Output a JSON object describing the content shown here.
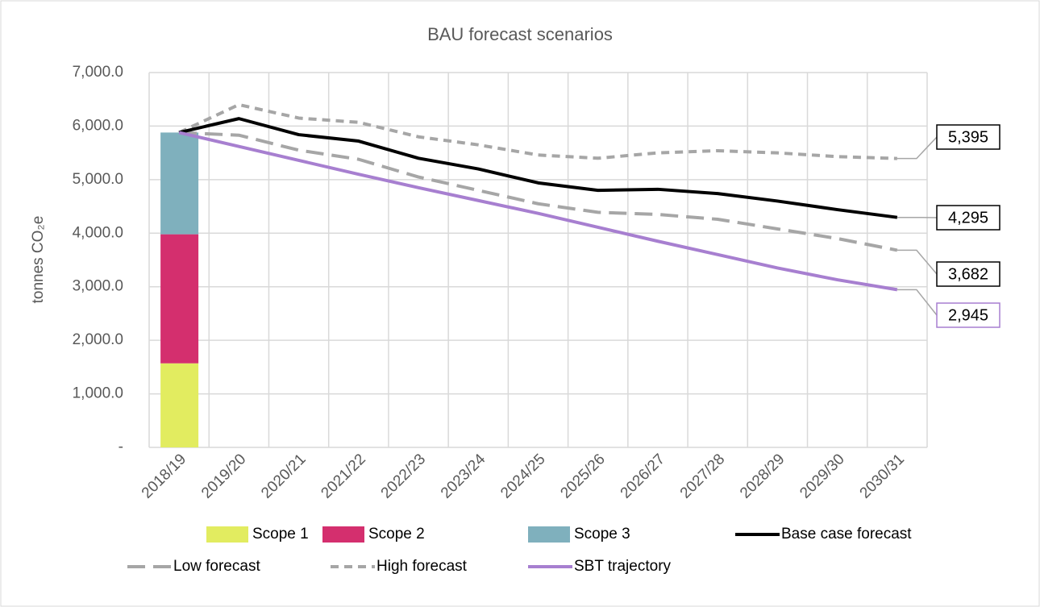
{
  "chart_data": {
    "type": "bar_line",
    "title": "BAU forecast scenarios",
    "y_label": "tonnes CO₂e",
    "categories": [
      "2018/19",
      "2019/20",
      "2020/21",
      "2021/22",
      "2022/23",
      "2023/24",
      "2024/25",
      "2025/26",
      "2026/27",
      "2027/28",
      "2028/29",
      "2029/30",
      "2030/31"
    ],
    "ylim": [
      0,
      7000
    ],
    "yticks": [
      {
        "value": 0,
        "label": "-"
      },
      {
        "value": 1000,
        "label": "1,000.0"
      },
      {
        "value": 2000,
        "label": "2,000.0"
      },
      {
        "value": 3000,
        "label": "3,000.0"
      },
      {
        "value": 4000,
        "label": "4,000.0"
      },
      {
        "value": 5000,
        "label": "5,000.0"
      },
      {
        "value": 6000,
        "label": "6,000.0"
      },
      {
        "value": 7000,
        "label": "7,000.0"
      }
    ],
    "grid": true,
    "legend": "bottom",
    "series": [
      {
        "name": "Scope 1",
        "kind": "bar",
        "color": "#e2ec60",
        "values": [
          1570,
          null,
          null,
          null,
          null,
          null,
          null,
          null,
          null,
          null,
          null,
          null,
          null
        ]
      },
      {
        "name": "Scope 2",
        "kind": "bar",
        "color": "#d42f6e",
        "values": [
          2410,
          null,
          null,
          null,
          null,
          null,
          null,
          null,
          null,
          null,
          null,
          null,
          null
        ]
      },
      {
        "name": "Scope 3",
        "kind": "bar",
        "color": "#7fb0bd",
        "values": [
          1900,
          null,
          null,
          null,
          null,
          null,
          null,
          null,
          null,
          null,
          null,
          null,
          null
        ]
      },
      {
        "name": "Base case forecast",
        "kind": "line",
        "color": "#000000",
        "dash": "solid",
        "values": [
          5880,
          6140,
          5840,
          5720,
          5400,
          5200,
          4940,
          4800,
          4820,
          4740,
          4600,
          4440,
          4295
        ],
        "value_labels": [
          null,
          null,
          null,
          null,
          null,
          null,
          null,
          null,
          null,
          null,
          null,
          null,
          "4,295"
        ]
      },
      {
        "name": "Low forecast",
        "kind": "line",
        "color": "#a6a6a6",
        "dash": "long",
        "values": [
          5880,
          5830,
          5550,
          5380,
          5050,
          4800,
          4550,
          4390,
          4350,
          4260,
          4080,
          3900,
          3682
        ],
        "value_labels": [
          null,
          null,
          null,
          null,
          null,
          null,
          null,
          null,
          null,
          null,
          null,
          null,
          "3,682"
        ]
      },
      {
        "name": "High forecast",
        "kind": "line",
        "color": "#a6a6a6",
        "dash": "short",
        "values": [
          5880,
          6400,
          6150,
          6070,
          5800,
          5650,
          5460,
          5400,
          5500,
          5540,
          5500,
          5430,
          5395
        ],
        "value_labels": [
          null,
          null,
          null,
          null,
          null,
          null,
          null,
          null,
          null,
          null,
          null,
          null,
          "5,395"
        ]
      },
      {
        "name": "SBT trajectory",
        "kind": "line",
        "color": "#a77fd0",
        "dash": "solid",
        "values": [
          5880,
          5620,
          5360,
          5100,
          4850,
          4610,
          4370,
          4110,
          3850,
          3600,
          3350,
          3130,
          2945
        ],
        "value_labels": [
          null,
          null,
          null,
          null,
          null,
          null,
          null,
          null,
          null,
          null,
          null,
          null,
          "2,945"
        ]
      }
    ]
  }
}
